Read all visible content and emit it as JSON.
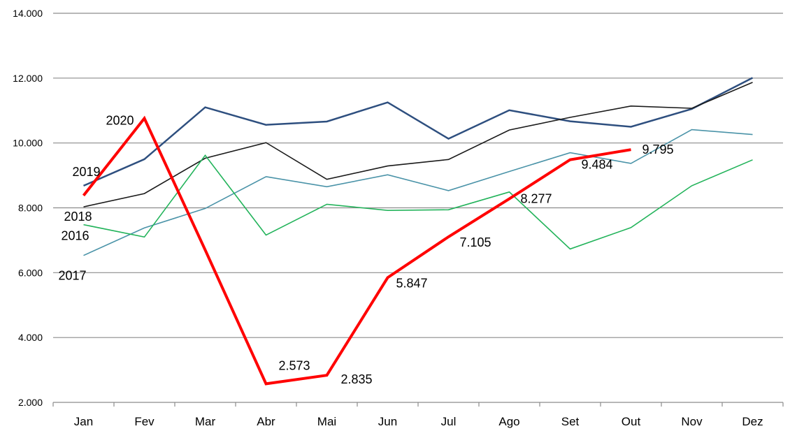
{
  "chart_data": {
    "type": "line",
    "categories": [
      "Jan",
      "Fev",
      "Mar",
      "Abr",
      "Mai",
      "Jun",
      "Jul",
      "Ago",
      "Set",
      "Out",
      "Nov",
      "Dez"
    ],
    "ylim": [
      2000,
      14000
    ],
    "yticks": [
      2000,
      4000,
      6000,
      8000,
      10000,
      12000,
      14000
    ],
    "ytick_labels": [
      "2.000",
      "4.000",
      "6.000",
      "8.000",
      "10.000",
      "12.000",
      "14.000"
    ],
    "grid": "horizontal",
    "series": [
      {
        "name": "2019",
        "color": "#2e4f7f",
        "width": 2.5,
        "values": [
          8680,
          9500,
          11100,
          10560,
          10660,
          11250,
          10130,
          11010,
          10670,
          10500,
          11050,
          12010
        ]
      },
      {
        "name": "2018",
        "color": "#1a1a1a",
        "width": 1.6,
        "values": [
          8030,
          8440,
          9530,
          10010,
          8880,
          9290,
          9490,
          10400,
          10790,
          11140,
          11070,
          11870
        ]
      },
      {
        "name": "2017",
        "color": "#4a93a8",
        "width": 1.6,
        "values": [
          6530,
          7380,
          7980,
          8960,
          8650,
          9020,
          8530,
          9120,
          9700,
          9370,
          10410,
          10260
        ]
      },
      {
        "name": "2016",
        "color": "#22b35a",
        "width": 1.6,
        "values": [
          7480,
          7100,
          9620,
          7160,
          8110,
          7920,
          7940,
          8490,
          6730,
          7390,
          8680,
          9480
        ]
      },
      {
        "name": "2020",
        "color": "#ff0000",
        "width": 4,
        "values": [
          8380,
          10760,
          6700,
          2573,
          2835,
          5847,
          7105,
          8277,
          9484,
          9795,
          null,
          null
        ],
        "data_labels": [
          "",
          "",
          "",
          "2.573",
          "2.835",
          "5.847",
          "7.105",
          "8.277",
          "9.484",
          "9.795",
          "",
          ""
        ]
      }
    ]
  }
}
